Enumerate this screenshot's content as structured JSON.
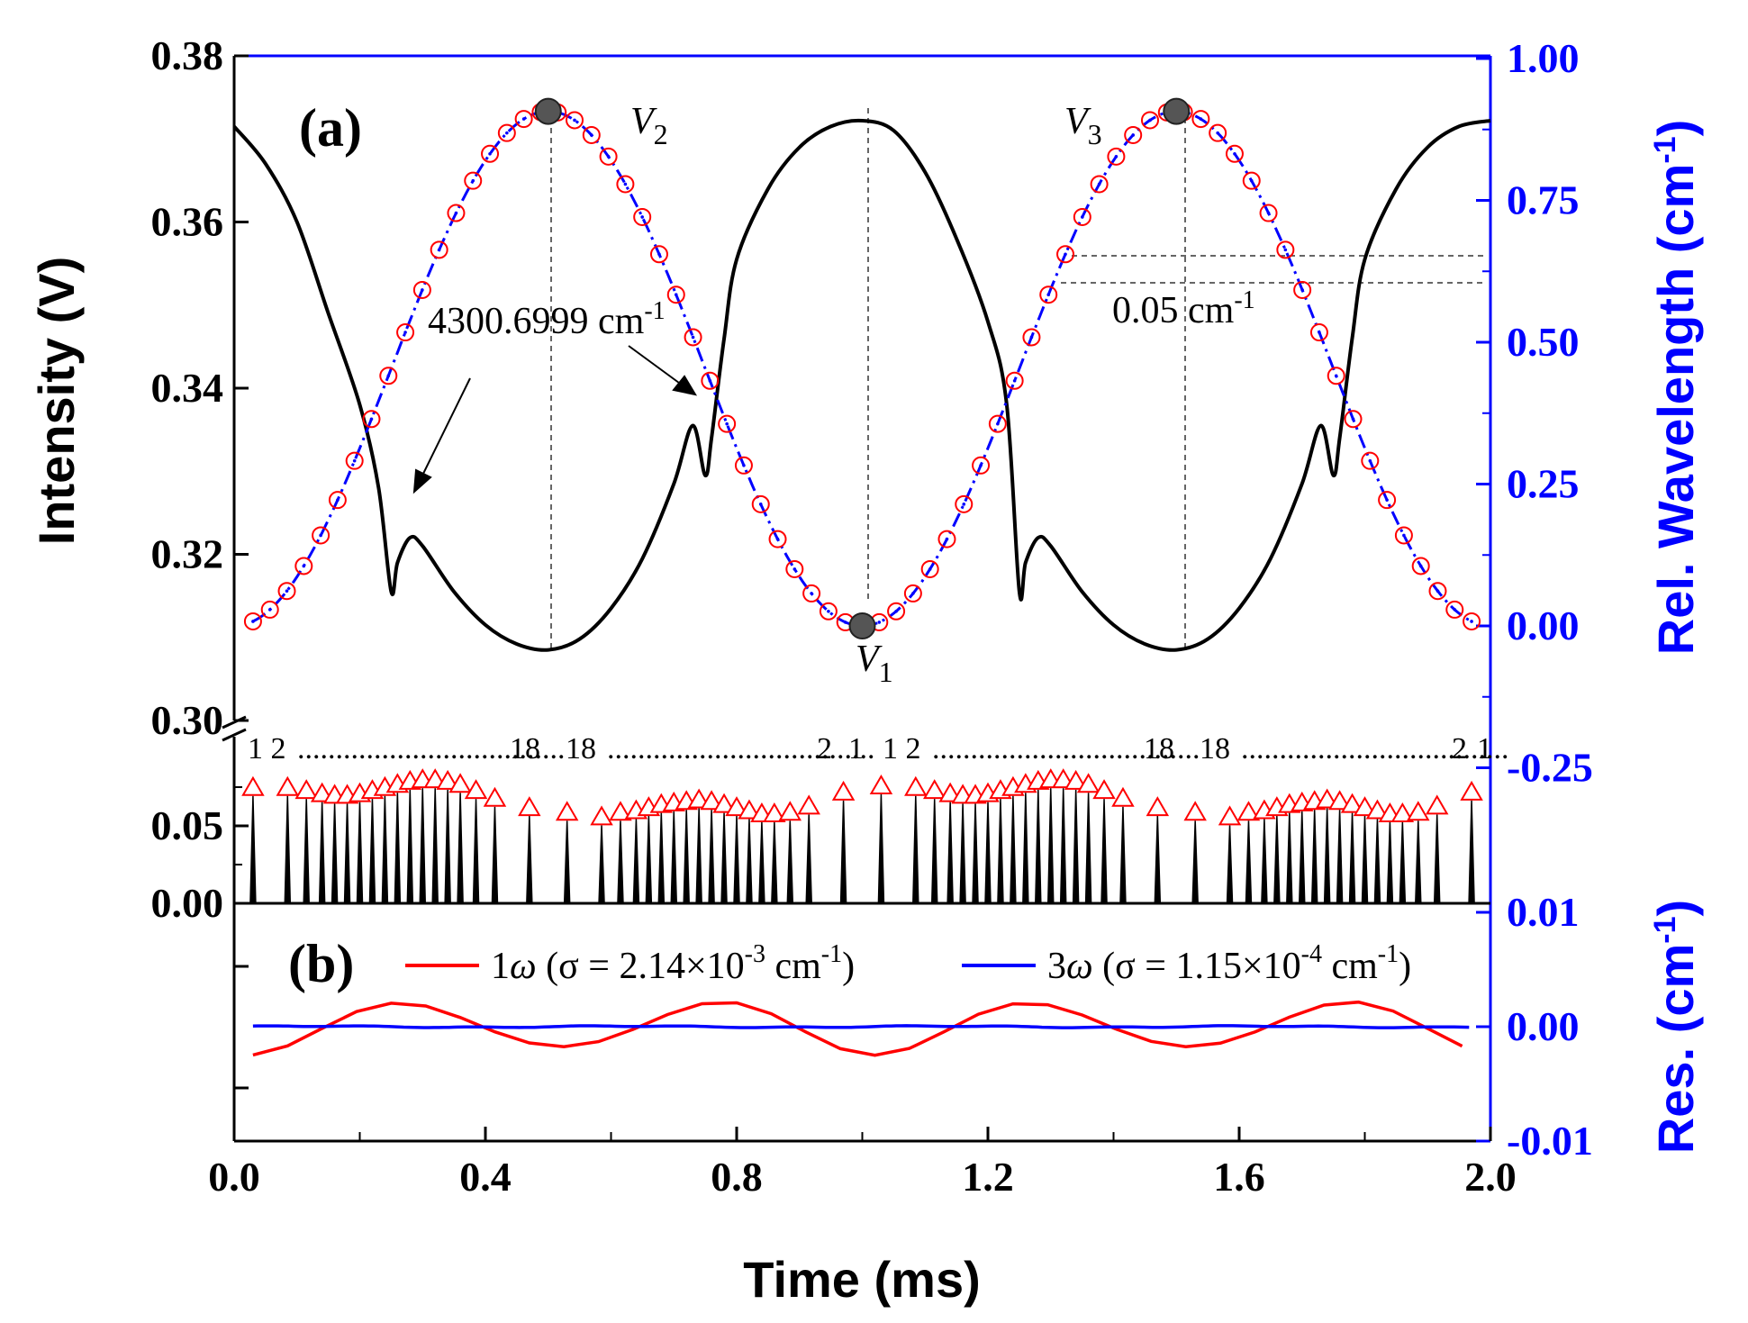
{
  "chart_data": {
    "type": "line",
    "panels": [
      "(a)",
      "(b)"
    ],
    "x_axis": {
      "label": "Time (ms)",
      "range": [
        0.0,
        2.0
      ],
      "ticks": [
        "0.0",
        "0.4",
        "0.8",
        "1.2",
        "1.6",
        "2.0"
      ]
    },
    "left_axis_upper": {
      "label": "Intensity (V)",
      "range": [
        0.3,
        0.38
      ],
      "ticks": [
        "0.30",
        "0.32",
        "0.34",
        "0.36",
        "0.38"
      ]
    },
    "left_axis_lower": {
      "range": [
        0.0,
        0.1
      ],
      "ticks": [
        "0.00",
        "0.05"
      ]
    },
    "right_axis_upper": {
      "label": "Rel. Wavelength (cm",
      "label_sup": "-1",
      "label_end": ")",
      "range": [
        -0.25,
        1.0
      ],
      "ticks": [
        "-0.25",
        "0.00",
        "0.25",
        "0.50",
        "0.75",
        "1.00"
      ]
    },
    "right_axis_lower": {
      "label": "Res. (cm",
      "label_sup": "-1",
      "label_end": ")",
      "range": [
        -0.01,
        0.01
      ],
      "ticks": [
        "-0.01",
        "0.00",
        "0.01"
      ]
    },
    "intensity_trace": {
      "x": [
        0.0,
        0.05,
        0.1,
        0.15,
        0.2,
        0.23,
        0.25,
        0.26,
        0.28,
        0.3,
        0.35,
        0.4,
        0.45,
        0.5,
        0.55,
        0.6,
        0.65,
        0.7,
        0.73,
        0.75,
        0.76,
        0.78,
        0.8,
        0.85,
        0.9,
        0.95,
        1.0,
        1.05,
        1.1,
        1.15,
        1.2,
        1.23,
        1.25,
        1.26,
        1.28,
        1.3,
        1.35,
        1.4,
        1.45,
        1.5,
        1.55,
        1.6,
        1.65,
        1.7,
        1.73,
        1.75,
        1.76,
        1.78,
        1.8,
        1.85,
        1.9,
        1.95,
        2.0
      ],
      "y": [
        0.3715,
        0.367,
        0.36,
        0.349,
        0.338,
        0.328,
        0.3155,
        0.319,
        0.322,
        0.321,
        0.3155,
        0.3115,
        0.3092,
        0.3085,
        0.3098,
        0.3135,
        0.3195,
        0.3285,
        0.3355,
        0.3295,
        0.334,
        0.346,
        0.3555,
        0.364,
        0.369,
        0.3715,
        0.3722,
        0.371,
        0.366,
        0.358,
        0.348,
        0.338,
        0.3155,
        0.319,
        0.322,
        0.321,
        0.3155,
        0.3115,
        0.3092,
        0.3085,
        0.3098,
        0.3135,
        0.3195,
        0.3285,
        0.3355,
        0.3295,
        0.334,
        0.346,
        0.3555,
        0.364,
        0.369,
        0.3715,
        0.3722
      ]
    },
    "wavelength": {
      "min": 0.0,
      "max": 0.907,
      "period_ms": 1.0,
      "first_max_ms": 0.5,
      "markers_per_half_period": 18
    },
    "spikes": {
      "x": [
        0.03,
        0.085,
        0.115,
        0.14,
        0.16,
        0.18,
        0.2,
        0.22,
        0.24,
        0.26,
        0.28,
        0.3,
        0.32,
        0.34,
        0.36,
        0.385,
        0.415,
        0.47,
        0.53,
        0.585,
        0.615,
        0.64,
        0.66,
        0.68,
        0.7,
        0.72,
        0.74,
        0.76,
        0.78,
        0.8,
        0.82,
        0.84,
        0.86,
        0.885,
        0.915,
        0.97,
        1.03,
        1.085,
        1.115,
        1.14,
        1.16,
        1.18,
        1.2,
        1.22,
        1.24,
        1.26,
        1.28,
        1.3,
        1.32,
        1.34,
        1.36,
        1.385,
        1.415,
        1.47,
        1.53,
        1.585,
        1.615,
        1.64,
        1.66,
        1.68,
        1.7,
        1.72,
        1.74,
        1.76,
        1.78,
        1.8,
        1.82,
        1.84,
        1.86,
        1.885,
        1.915,
        1.97
      ],
      "y": [
        0.074,
        0.074,
        0.072,
        0.07,
        0.069,
        0.069,
        0.07,
        0.072,
        0.074,
        0.076,
        0.078,
        0.079,
        0.079,
        0.078,
        0.076,
        0.072,
        0.067,
        0.061,
        0.058,
        0.055,
        0.058,
        0.059,
        0.061,
        0.063,
        0.064,
        0.065,
        0.066,
        0.065,
        0.063,
        0.061,
        0.059,
        0.057,
        0.057,
        0.058,
        0.062,
        0.071,
        0.075,
        0.074,
        0.072,
        0.07,
        0.069,
        0.069,
        0.07,
        0.072,
        0.074,
        0.076,
        0.078,
        0.079,
        0.079,
        0.078,
        0.076,
        0.072,
        0.067,
        0.061,
        0.058,
        0.055,
        0.058,
        0.059,
        0.061,
        0.063,
        0.064,
        0.065,
        0.066,
        0.065,
        0.063,
        0.061,
        0.059,
        0.057,
        0.057,
        0.058,
        0.062,
        0.071
      ]
    },
    "residuals": {
      "series": [
        {
          "name": "1ω (σ = 2.14×10⁻³ cm⁻¹)",
          "label_pre": "1",
          "label_omega": "ω",
          "label_mid": " (σ = 2.14×10",
          "label_exp": "-3",
          "label_unit": " cm",
          "label_unit_sup": "-1",
          "label_end": ")",
          "color": "#ff0000",
          "amplitude": 0.0025
        },
        {
          "name": "3ω (σ = 1.15×10⁻⁴ cm⁻¹)",
          "label_pre": "3",
          "label_omega": "ω",
          "label_mid": " (σ = 1.15×10",
          "label_exp": "-4",
          "label_unit": " cm",
          "label_unit_sup": "-1",
          "label_end": ")",
          "color": "#0000ff",
          "amplitude": 0.0001
        }
      ]
    },
    "annotations": {
      "wavenumber": "4300.6999 cm",
      "wavenumber_sup": "-1",
      "spacing": "0.05 cm",
      "spacing_sup": "-1",
      "v1": "V",
      "v1_sub": "1",
      "v2": "V",
      "v2_sub": "2",
      "v3": "V",
      "v3_sub": "3",
      "seq_1": "1 2",
      "seq_dots_1": "...................................",
      "seq_18a": "18",
      "seq_18b": "18",
      "seq_dots_2": "...................................",
      "seq_2a": "2",
      "seq_1a": "1",
      "seq_1b": "1 2",
      "seq_18c": "18",
      "seq_18d": "18",
      "seq_2b": "2",
      "seq_1c": "1"
    },
    "colors": {
      "intensity": "#000000",
      "wavelength": "#0000ff",
      "markers": "#ff0000",
      "right_axis": "#0000ff",
      "peak_dots": "#555555"
    }
  }
}
